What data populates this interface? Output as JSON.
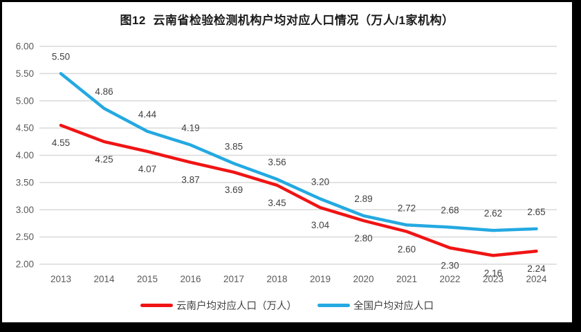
{
  "title": "图12  云南省检验检测机构户均对应人口情况（万人/1家机构）",
  "chart_data": {
    "type": "line",
    "categories": [
      "2013",
      "2014",
      "2015",
      "2016",
      "2017",
      "2018",
      "2019",
      "2020",
      "2021",
      "2022",
      "2023",
      "2024"
    ],
    "series": [
      {
        "name": "云南户均对应人口（万人）",
        "color": "#F01414",
        "values": [
          4.55,
          4.25,
          4.07,
          3.87,
          3.69,
          3.45,
          3.04,
          2.8,
          2.6,
          2.3,
          2.16,
          2.24
        ],
        "label_position": "below"
      },
      {
        "name": "全国户均对应人口",
        "color": "#24A9E1",
        "values": [
          5.5,
          4.86,
          4.44,
          4.19,
          3.85,
          3.56,
          3.2,
          2.89,
          2.72,
          2.68,
          2.62,
          2.65
        ],
        "label_position": "above"
      }
    ],
    "ylim": [
      2.0,
      6.0
    ],
    "ytick_step": 0.5,
    "ytick_decimals": 2,
    "grid": "horizontal",
    "legend_position": "bottom",
    "value_labels": true,
    "xlabel": "",
    "ylabel": ""
  },
  "colors": {
    "background": "#FFFFFF",
    "frame": "#000000",
    "gridline": "#D9D9D9",
    "axis_text": "#595959",
    "value_label_text": "#404040",
    "title_text": "#1A1A1A",
    "legend_text": "#3F3F3F"
  }
}
